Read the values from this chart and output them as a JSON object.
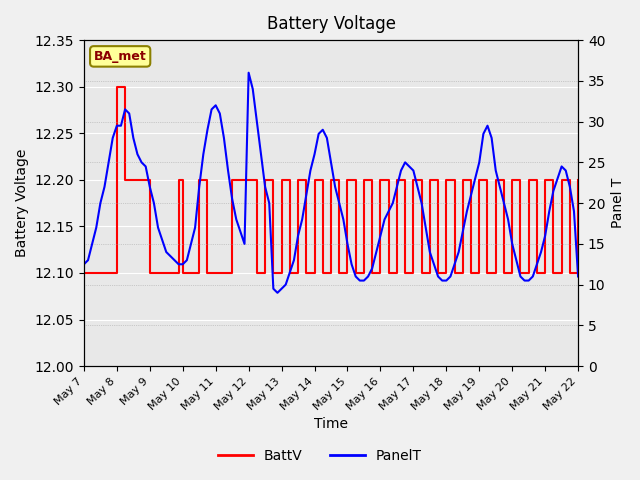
{
  "title": "Battery Voltage",
  "xlabel": "Time",
  "ylabel_left": "Battery Voltage",
  "ylabel_right": "Panel T",
  "ylim_left": [
    12.0,
    12.35
  ],
  "ylim_right": [
    0,
    40
  ],
  "yticks_left": [
    12.0,
    12.05,
    12.1,
    12.15,
    12.2,
    12.25,
    12.3,
    12.35
  ],
  "yticks_right": [
    0,
    5,
    10,
    15,
    20,
    25,
    30,
    35,
    40
  ],
  "background_color": "#f0f0f0",
  "plot_bg_color": "#e8e8e8",
  "annotation_box": {
    "text": "BA_met",
    "text_color": "#8B0000",
    "bg_color": "#FFFF99",
    "edge_color": "#8B8000"
  },
  "legend": [
    "BattV",
    "PanelT"
  ],
  "line_colors": [
    "red",
    "blue"
  ],
  "x_labels": [
    "May 7",
    "May 8",
    "May 9",
    "May 10",
    "May 11",
    "May 12",
    "May 13",
    "May 14",
    "May 15",
    "May 16",
    "May 17",
    "May 18",
    "May 19",
    "May 20",
    "May 21",
    "May 22"
  ],
  "batt_data": [
    12.1,
    12.1,
    12.1,
    12.1,
    12.1,
    12.1,
    12.1,
    12.1,
    12.3,
    12.3,
    12.2,
    12.2,
    12.2,
    12.2,
    12.2,
    12.2,
    12.1,
    12.1,
    12.1,
    12.1,
    12.1,
    12.1,
    12.1,
    12.2,
    12.1,
    12.1,
    12.1,
    12.1,
    12.2,
    12.2,
    12.1,
    12.1,
    12.1,
    12.1,
    12.1,
    12.1,
    12.2,
    12.2,
    12.2,
    12.2,
    12.2,
    12.2,
    12.1,
    12.1,
    12.2,
    12.2,
    12.1,
    12.1,
    12.2,
    12.2,
    12.1,
    12.1,
    12.2,
    12.2,
    12.1,
    12.1,
    12.2,
    12.2,
    12.1,
    12.1,
    12.2,
    12.2,
    12.1,
    12.1,
    12.2,
    12.2,
    12.1,
    12.1,
    12.2,
    12.2,
    12.1,
    12.1,
    12.2,
    12.2,
    12.1,
    12.1,
    12.2,
    12.2,
    12.1,
    12.1,
    12.2,
    12.2,
    12.1,
    12.1,
    12.2,
    12.2,
    12.1,
    12.1,
    12.2,
    12.2,
    12.1,
    12.1,
    12.2,
    12.2,
    12.1,
    12.1,
    12.2,
    12.2,
    12.1,
    12.1,
    12.2,
    12.2,
    12.1,
    12.1,
    12.2,
    12.2,
    12.1,
    12.1,
    12.2,
    12.2,
    12.1,
    12.1,
    12.2,
    12.2,
    12.1,
    12.1,
    12.2,
    12.2,
    12.1,
    12.1,
    12.2
  ],
  "panel_data": [
    12.5,
    13.0,
    15.0,
    17.0,
    20.0,
    22.0,
    25.0,
    28.0,
    29.5,
    29.5,
    31.5,
    31.0,
    28.0,
    26.0,
    25.0,
    24.5,
    22.0,
    20.0,
    17.0,
    15.5,
    14.0,
    13.5,
    13.0,
    12.5,
    12.5,
    13.0,
    15.0,
    17.0,
    22.0,
    26.0,
    29.0,
    31.5,
    32.0,
    31.0,
    28.0,
    24.0,
    20.5,
    18.0,
    16.5,
    15.0,
    36.0,
    34.0,
    30.0,
    26.0,
    22.0,
    20.0,
    9.5,
    9.0,
    9.5,
    10.0,
    11.5,
    13.0,
    16.0,
    18.0,
    21.0,
    24.0,
    26.0,
    28.5,
    29.0,
    28.0,
    25.0,
    22.0,
    20.0,
    18.0,
    15.0,
    12.5,
    11.0,
    10.5,
    10.5,
    11.0,
    12.0,
    14.0,
    16.0,
    18.0,
    19.0,
    20.0,
    22.0,
    24.0,
    25.0,
    24.5,
    24.0,
    22.0,
    20.0,
    17.0,
    14.0,
    12.5,
    11.0,
    10.5,
    10.5,
    11.0,
    12.5,
    14.0,
    16.5,
    19.0,
    21.0,
    23.0,
    25.0,
    28.5,
    29.5,
    28.0,
    24.0,
    22.0,
    20.0,
    18.0,
    15.0,
    13.0,
    11.0,
    10.5,
    10.5,
    11.0,
    12.5,
    14.0,
    16.0,
    19.0,
    21.5,
    23.0,
    24.5,
    24.0,
    22.0,
    19.0,
    11.0
  ]
}
